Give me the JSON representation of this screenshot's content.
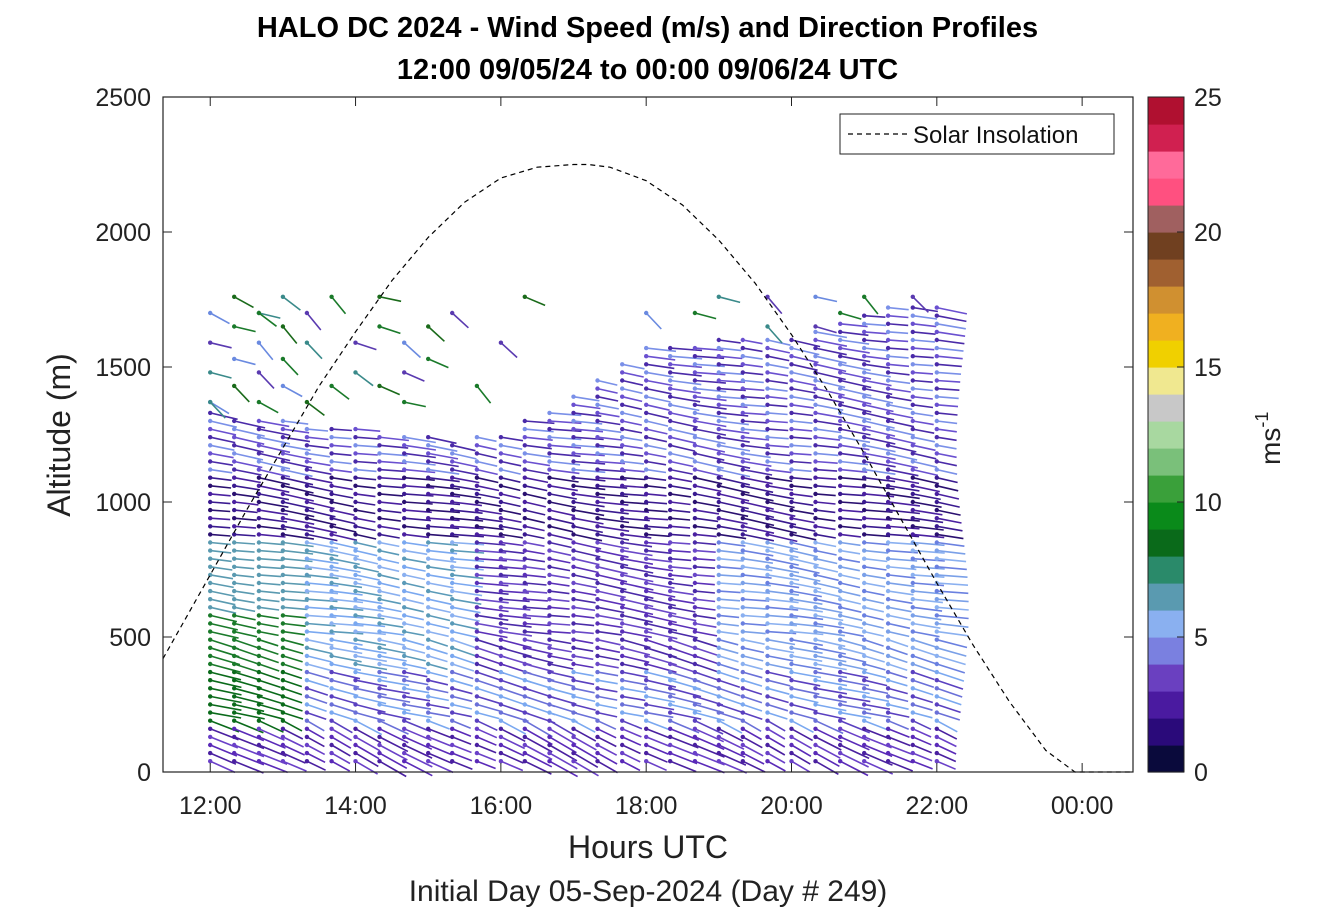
{
  "chart_data": {
    "type": "scatter",
    "title_lines": [
      "HALO DC 2024 - Wind Speed (m/s) and Direction Profiles",
      "12:00 09/05/24 to 00:00 09/06/24  UTC"
    ],
    "xlabel": "Hours UTC",
    "ylabel": "Altitude (m)",
    "subtitle": "Initial Day 05-Sep-2024 (Day # 249)",
    "xlim": [
      11.35,
      24.7
    ],
    "ylim": [
      0,
      2500
    ],
    "x_ticks": [
      12,
      14,
      16,
      18,
      20,
      22,
      24
    ],
    "x_tick_labels": [
      "12:00",
      "14:00",
      "16:00",
      "18:00",
      "20:00",
      "22:00",
      "00:00"
    ],
    "y_ticks": [
      0,
      500,
      1000,
      1500,
      2000,
      2500
    ],
    "y_tick_labels": [
      "0",
      "500",
      "1000",
      "1500",
      "2000",
      "2500"
    ],
    "legend": {
      "label": "Solar Insolation",
      "position": "top-right"
    },
    "colorbar": {
      "label": "ms",
      "label_superscript": "-1",
      "range": [
        0,
        25
      ],
      "tick_labels": [
        "0",
        "5",
        "10",
        "15",
        "20",
        "25"
      ],
      "ticks": [
        0,
        5,
        10,
        15,
        20,
        25
      ],
      "colors": [
        "#0a0a3c",
        "#2a0a7a",
        "#4a1aa0",
        "#6a40c0",
        "#7a80e0",
        "#8ab0f0",
        "#5a9ab0",
        "#2a8a6a",
        "#0a6a1a",
        "#0a8a1a",
        "#3aa03a",
        "#7ac07a",
        "#a8d8a0",
        "#c8c8c8",
        "#f0e890",
        "#f0d000",
        "#f0b020",
        "#d09030",
        "#a06030",
        "#704020",
        "#a06060",
        "#ff5080",
        "#ff6a9a",
        "#d02050",
        "#b01030"
      ]
    },
    "solar_insolation": {
      "x": [
        11.35,
        12.0,
        12.5,
        13.0,
        13.5,
        14.0,
        14.5,
        15.0,
        15.5,
        16.0,
        16.5,
        17.0,
        17.2,
        17.5,
        18.0,
        18.5,
        19.0,
        19.5,
        20.0,
        20.5,
        21.0,
        21.5,
        22.0,
        22.5,
        23.0,
        23.5,
        23.9,
        24.0,
        24.7
      ],
      "y": [
        420,
        730,
        970,
        1200,
        1430,
        1630,
        1820,
        1980,
        2110,
        2200,
        2240,
        2250,
        2250,
        2240,
        2190,
        2100,
        1970,
        1810,
        1620,
        1410,
        1180,
        940,
        700,
        470,
        260,
        80,
        0,
        0,
        0
      ]
    },
    "wind_profiles": {
      "times": [
        12.0,
        12.33,
        12.67,
        13.0,
        13.33,
        13.67,
        14.0,
        14.33,
        14.67,
        15.0,
        15.33,
        15.67,
        16.0,
        16.33,
        16.67,
        17.0,
        17.33,
        17.67,
        18.0,
        18.33,
        18.67,
        19.0,
        19.33,
        19.67,
        20.0,
        20.33,
        20.67,
        21.0,
        21.33,
        21.67,
        22.0
      ],
      "top_altitude_m": [
        1340,
        1320,
        1310,
        1300,
        1290,
        1280,
        1270,
        1260,
        1250,
        1240,
        1230,
        1240,
        1260,
        1300,
        1350,
        1400,
        1460,
        1520,
        1580,
        1590,
        1590,
        1600,
        1600,
        1610,
        1620,
        1640,
        1680,
        1700,
        1720,
        1720,
        1720
      ],
      "spacing_m": 30,
      "upper_altitudes_m": [
        1370,
        1430,
        1480,
        1530,
        1590,
        1650,
        1700,
        1760
      ],
      "upper_count": [
        5,
        4,
        5,
        4,
        3,
        2,
        2,
        3,
        3,
        2,
        1,
        1,
        1,
        1,
        0,
        0,
        0,
        0,
        1,
        2,
        2,
        2,
        2,
        2,
        2,
        3,
        4,
        4,
        4,
        3,
        3
      ]
    }
  }
}
